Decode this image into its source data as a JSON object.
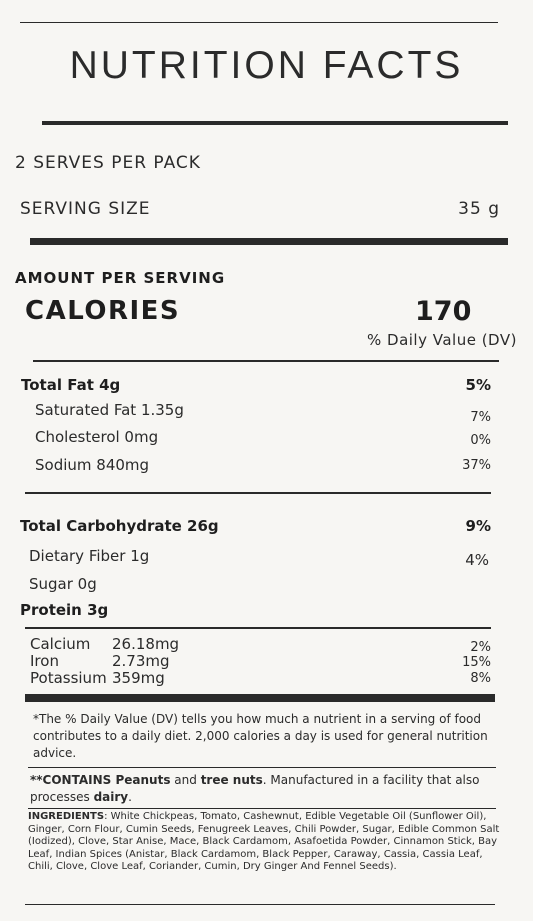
{
  "title": "NUTRITION FACTS",
  "serves_per_pack": "2 SERVES PER PACK",
  "serving_size": {
    "label": "SERVING SIZE",
    "value": "35 g"
  },
  "amount_per_serving": "AMOUNT PER SERVING",
  "calories": {
    "label": "CALORIES",
    "value": "170"
  },
  "daily_value_header": "% Daily Value (DV)",
  "nutrients": {
    "total_fat": {
      "label": "Total Fat 4g",
      "dv": "5%"
    },
    "saturated_fat": {
      "label": "Saturated Fat 1.35g",
      "dv": "7%"
    },
    "cholesterol": {
      "label": "Cholesterol 0mg",
      "dv": "0%"
    },
    "sodium": {
      "label": "Sodium 840mg",
      "dv": "37%"
    },
    "total_carbohydrate": {
      "label": "Total Carbohydrate 26g",
      "dv": "9%"
    },
    "dietary_fiber": {
      "label": "Dietary Fiber 1g",
      "dv": "4%"
    },
    "sugar": {
      "label": "Sugar 0g"
    },
    "protein": {
      "label": "Protein 3g"
    }
  },
  "minerals": [
    {
      "name": "Calcium",
      "amount": "26.18mg",
      "dv": "2%"
    },
    {
      "name": "Iron",
      "amount": "2.73mg",
      "dv": "15%"
    },
    {
      "name": "Potassium",
      "amount": "359mg",
      "dv": "8%"
    }
  ],
  "footnote": "*The % Daily Value (DV) tells you how much a nutrient in a serving of food contributes to a daily diet. 2,000 calories a day is used for general nutrition advice.",
  "allergen": {
    "prefix": "**CONTAINS Peanuts",
    "and": " and ",
    "tree_nuts": "tree nuts",
    "middle": ". Manufactured in a facility that also processes ",
    "dairy": "dairy",
    "end": "."
  },
  "ingredients": {
    "label": "INGREDIENTS",
    "text": ": White Chickpeas, Tomato, Cashewnut, Edible Vegetable Oil (Sunflower Oil), Ginger, Corn Flour, Cumin Seeds, Fenugreek Leaves, Chili Powder, Sugar, Edible Common Salt (Iodized), Clove, Star Anise, Mace, Black Cardamom, Asafoetida Powder, Cinnamon Stick, Bay Leaf, Indian Spices (Anistar, Black Cardamom, Black Pepper, Caraway, Cassia, Cassia Leaf, Chili, Clove, Clove Leaf, Coriander, Cumin, Dry Ginger And Fennel Seeds)."
  },
  "colors": {
    "background": "#f7f6f3",
    "text": "#1e1e1e",
    "rule": "#2a2a2a"
  }
}
